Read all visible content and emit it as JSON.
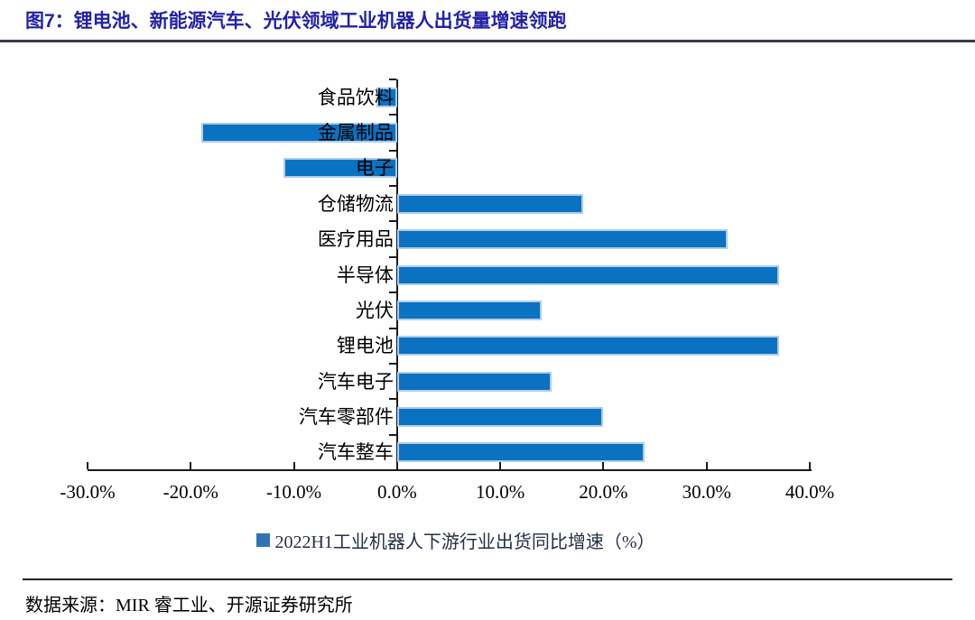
{
  "header": {
    "title": "图7：锂电池、新能源汽车、光伏领域工业机器人出货量增速领跑"
  },
  "chart_data": {
    "type": "bar",
    "orientation": "horizontal",
    "title": "",
    "categories": [
      "食品饮料",
      "金属制品",
      "电子",
      "仓储物流",
      "医疗用品",
      "半导体",
      "光伏",
      "锂电池",
      "汽车电子",
      "汽车零部件",
      "汽车整车"
    ],
    "values": [
      -2.0,
      -19.0,
      -11.0,
      18.0,
      32.0,
      37.0,
      14.0,
      37.0,
      15.0,
      20.0,
      24.0
    ],
    "unit": "%",
    "xlim": [
      -30,
      40
    ],
    "xtick_values": [
      -30,
      -20,
      -10,
      0,
      10,
      20,
      30,
      40
    ],
    "xtick_labels": [
      "-30.0%",
      "-20.0%",
      "-10.0%",
      "0.0%",
      "10.0%",
      "20.0%",
      "30.0%",
      "40.0%"
    ],
    "grid": false,
    "legend": "2022H1工业机器人下游行业出货同比增速（%）",
    "legend_position": "bottom",
    "bar_color": "#0B72C2",
    "bar_border_color": "#AFCDEB",
    "legend_swatch_color": "#2E75B6",
    "axis_color": "#1a1a1a"
  },
  "footer": {
    "source": "数据来源：MIR 睿工业、开源证券研究所"
  }
}
